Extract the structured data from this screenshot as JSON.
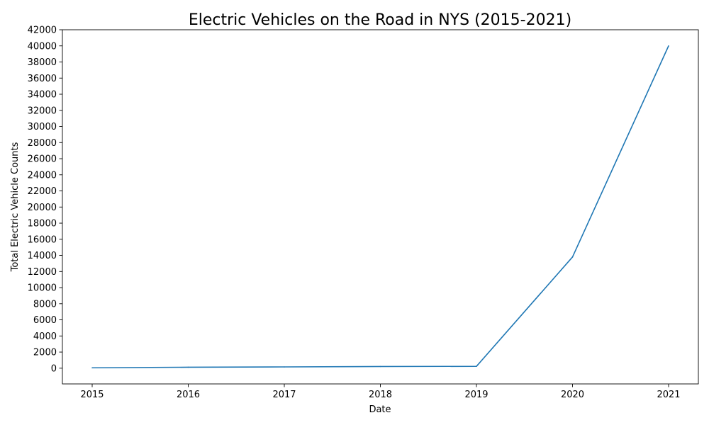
{
  "chart_data": {
    "type": "line",
    "title": "Electric Vehicles on the Road in NYS (2015-2021)",
    "xlabel": "Date",
    "ylabel": "Total Electric Vehicle Counts",
    "x": [
      "2015",
      "2016",
      "2017",
      "2018",
      "2019",
      "2020",
      "2021"
    ],
    "series": [
      {
        "values": [
          50,
          120,
          160,
          210,
          230,
          13800,
          40000
        ],
        "color": "#1f77b4"
      }
    ],
    "xlim": [
      2014.69,
      2021.31
    ],
    "ylim": [
      -1950,
      42000
    ],
    "yticks": [
      0,
      2000,
      4000,
      6000,
      8000,
      10000,
      12000,
      14000,
      16000,
      18000,
      20000,
      22000,
      24000,
      26000,
      28000,
      30000,
      32000,
      34000,
      36000,
      38000,
      40000,
      42000
    ],
    "grid": false,
    "legend": false
  }
}
